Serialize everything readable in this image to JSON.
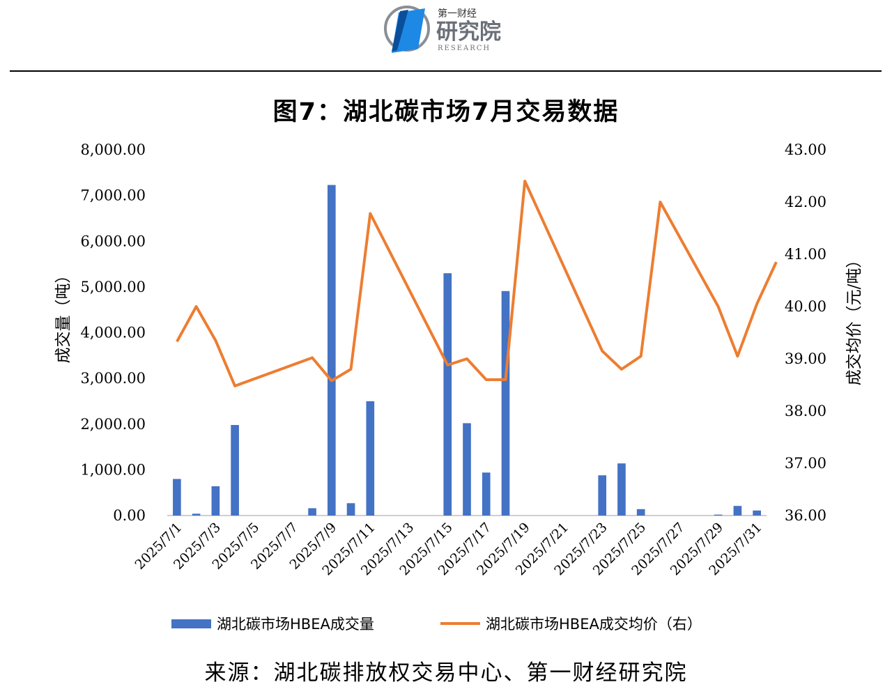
{
  "logo": {
    "line1": "第一财经",
    "line2": "研究院",
    "line3": "RESEARCH",
    "color": "#1E88E5"
  },
  "title": "图7：湖北碳市场7月交易数据",
  "source": "来源：湖北碳排放权交易中心、第一财经研究院",
  "chart_data": {
    "type": "bar+line",
    "categories": [
      "2025/7/1",
      "2025/7/2",
      "2025/7/3",
      "2025/7/4",
      "2025/7/5",
      "2025/7/6",
      "2025/7/7",
      "2025/7/8",
      "2025/7/9",
      "2025/7/10",
      "2025/7/11",
      "2025/7/12",
      "2025/7/13",
      "2025/7/14",
      "2025/7/15",
      "2025/7/16",
      "2025/7/17",
      "2025/7/18",
      "2025/7/19",
      "2025/7/20",
      "2025/7/21",
      "2025/7/22",
      "2025/7/23",
      "2025/7/24",
      "2025/7/25",
      "2025/7/26",
      "2025/7/27",
      "2025/7/28",
      "2025/7/29",
      "2025/7/30",
      "2025/7/31"
    ],
    "x_tick_labels": [
      "2025/7/1",
      "2025/7/3",
      "2025/7/5",
      "2025/7/7",
      "2025/7/9",
      "2025/7/11",
      "2025/7/13",
      "2025/7/15",
      "2025/7/17",
      "2025/7/19",
      "2025/7/21",
      "2025/7/23",
      "2025/7/25",
      "2025/7/27",
      "2025/7/29",
      "2025/7/31"
    ],
    "series": [
      {
        "name": "湖北碳市场HBEA成交量",
        "type": "bar",
        "axis": "left",
        "color": "#4472C4",
        "values": [
          800,
          40,
          640,
          1980,
          0,
          0,
          0,
          160,
          7230,
          270,
          2500,
          0,
          0,
          0,
          5300,
          2020,
          940,
          4910,
          0,
          0,
          0,
          0,
          880,
          1140,
          140,
          0,
          0,
          0,
          20,
          210,
          110
        ]
      },
      {
        "name": "湖北碳市场HBEA成交均价（右）",
        "type": "line",
        "axis": "right",
        "color": "#ED7D31",
        "points": [
          [
            "2025/7/1",
            39.33
          ],
          [
            "2025/7/2",
            40.0
          ],
          [
            "2025/7/3",
            39.35
          ],
          [
            "2025/7/4",
            38.48
          ],
          [
            "2025/7/8",
            39.02
          ],
          [
            "2025/7/9",
            38.58
          ],
          [
            "2025/7/10",
            38.8
          ],
          [
            "2025/7/11",
            41.78
          ],
          [
            "2025/7/15",
            38.88
          ],
          [
            "2025/7/16",
            39.0
          ],
          [
            "2025/7/17",
            38.6
          ],
          [
            "2025/7/18",
            38.6
          ],
          [
            "2025/7/19",
            42.4
          ],
          [
            "2025/7/23",
            39.15
          ],
          [
            "2025/7/24",
            38.8
          ],
          [
            "2025/7/25",
            39.05
          ],
          [
            "2025/7/26",
            42.0
          ],
          [
            "2025/7/29",
            40.0
          ],
          [
            "2025/7/30",
            39.05
          ],
          [
            "2025/7/31",
            40.05
          ],
          [
            "2025/8/1",
            40.85
          ]
        ]
      }
    ],
    "y_left": {
      "label": "成交量（吨）",
      "ylim": [
        0,
        8000
      ],
      "ticks": [
        "0.00",
        "1,000.00",
        "2,000.00",
        "3,000.00",
        "4,000.00",
        "5,000.00",
        "6,000.00",
        "7,000.00",
        "8,000.00"
      ]
    },
    "y_right": {
      "label": "成交均价（元/吨）",
      "ylim": [
        36,
        43
      ],
      "ticks": [
        "36.00",
        "37.00",
        "38.00",
        "39.00",
        "40.00",
        "41.00",
        "42.00",
        "43.00"
      ]
    },
    "grid": false,
    "legend_position": "bottom"
  }
}
